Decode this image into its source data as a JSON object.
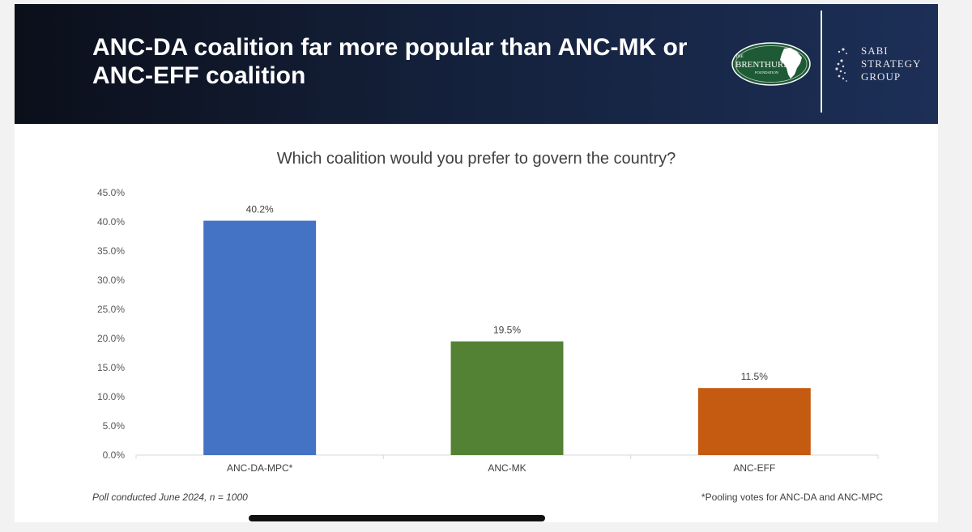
{
  "slide": {
    "title_line1": "ANC-DA coalition far more popular than ANC-MK or",
    "title_line2": "ANC-EFF coalition",
    "logos": {
      "brenthurst": {
        "small_top": "THE",
        "name": "BRENTHURST",
        "small_bottom": "FOUNDATION"
      },
      "sabi": {
        "line1": "SABI",
        "line2": "STRATEGY",
        "line3": "GROUP"
      }
    },
    "footnote_left": "Poll conducted June 2024, n = 1000",
    "footnote_right": "*Pooling votes for ANC-DA and ANC-MPC",
    "colors": {
      "header_dark": "#0b0f1a",
      "header_light": "#1c2f57"
    }
  },
  "chart_data": {
    "type": "bar",
    "title": "Which coalition would you prefer to govern the country?",
    "categories": [
      "ANC-DA-MPC*",
      "ANC-MK",
      "ANC-EFF"
    ],
    "values": [
      40.2,
      19.5,
      11.5
    ],
    "value_labels": [
      "40.2%",
      "19.5%",
      "11.5%"
    ],
    "colors": [
      "#4472c4",
      "#548235",
      "#c55a11"
    ],
    "ylim": [
      0,
      45
    ],
    "yticks": [
      0,
      5,
      10,
      15,
      20,
      25,
      30,
      35,
      40,
      45
    ],
    "ytick_labels": [
      "0.0%",
      "5.0%",
      "10.0%",
      "15.0%",
      "20.0%",
      "25.0%",
      "30.0%",
      "35.0%",
      "40.0%",
      "45.0%"
    ],
    "xlabel": "",
    "ylabel": "",
    "grid": false,
    "legend": "none"
  }
}
